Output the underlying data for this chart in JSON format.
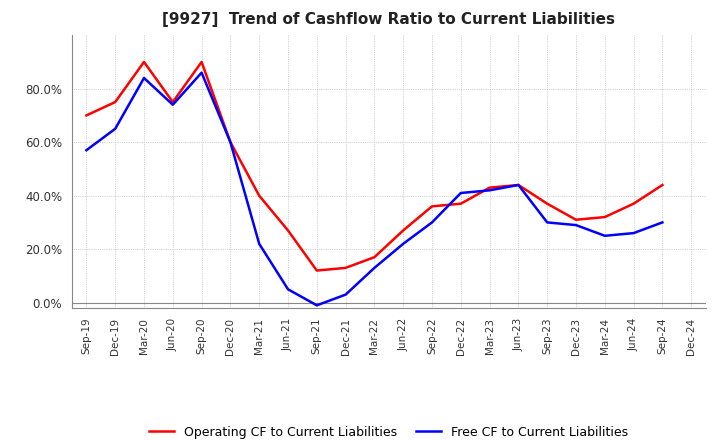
{
  "title": "[9927]  Trend of Cashflow Ratio to Current Liabilities",
  "x_labels": [
    "Sep-19",
    "Dec-19",
    "Mar-20",
    "Jun-20",
    "Sep-20",
    "Dec-20",
    "Mar-21",
    "Jun-21",
    "Sep-21",
    "Dec-21",
    "Mar-22",
    "Jun-22",
    "Sep-22",
    "Dec-22",
    "Mar-23",
    "Jun-23",
    "Sep-23",
    "Dec-23",
    "Mar-24",
    "Jun-24",
    "Sep-24",
    "Dec-24"
  ],
  "operating_cf": [
    0.7,
    0.75,
    0.9,
    0.75,
    0.9,
    0.6,
    0.4,
    0.27,
    0.12,
    0.13,
    0.17,
    0.27,
    0.36,
    0.37,
    0.43,
    0.44,
    0.37,
    0.31,
    0.32,
    0.37,
    0.44,
    null
  ],
  "free_cf": [
    0.57,
    0.65,
    0.84,
    0.74,
    0.86,
    0.6,
    0.22,
    0.05,
    -0.01,
    0.03,
    0.13,
    0.22,
    0.3,
    0.41,
    0.42,
    0.44,
    0.3,
    0.29,
    0.25,
    0.26,
    0.3,
    null
  ],
  "operating_color": "#FF0000",
  "free_color": "#0000FF",
  "ylim": [
    -0.02,
    1.0
  ],
  "yticks": [
    0.0,
    0.2,
    0.4,
    0.6,
    0.8
  ],
  "background_color": "#FFFFFF",
  "grid_color": "#AAAAAA",
  "title_fontsize": 11,
  "legend_labels": [
    "Operating CF to Current Liabilities",
    "Free CF to Current Liabilities"
  ]
}
